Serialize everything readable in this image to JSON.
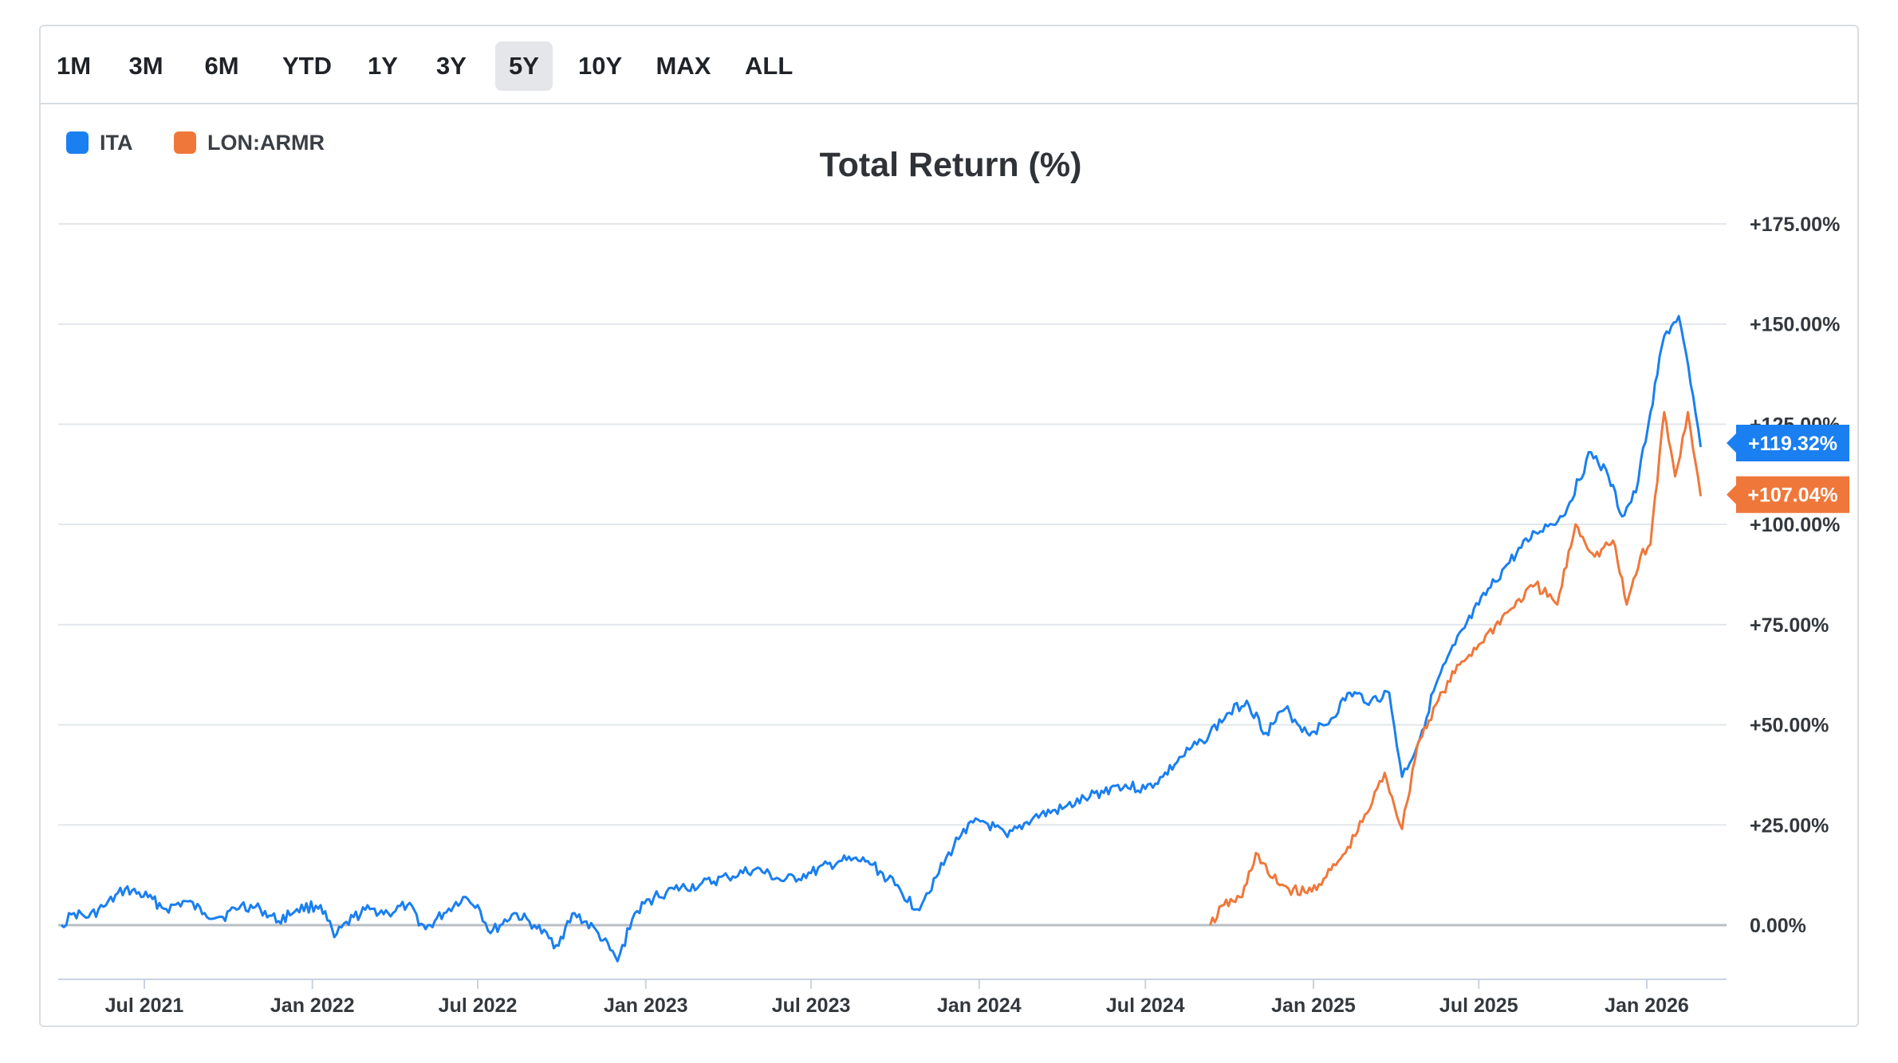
{
  "range_tabs": [
    {
      "label": "1M",
      "active": false
    },
    {
      "label": "3M",
      "active": false
    },
    {
      "label": "6M",
      "active": false
    },
    {
      "label": "YTD",
      "active": false
    },
    {
      "label": "1Y",
      "active": false
    },
    {
      "label": "3Y",
      "active": false
    },
    {
      "label": "5Y",
      "active": true
    },
    {
      "label": "10Y",
      "active": false
    },
    {
      "label": "MAX",
      "active": false
    },
    {
      "label": "ALL",
      "active": false
    }
  ],
  "colors": {
    "ita": "#1a7ff0",
    "armr": "#f0773a",
    "grid": "#e3e6ea",
    "zero_line": "#b9bec5",
    "axis_text": "#33383d"
  },
  "chart_data": {
    "type": "line",
    "title": "Total Return (%)",
    "xlabel": "",
    "ylabel": "",
    "x_ticks": [
      "Jul 2021",
      "Jan 2022",
      "Jul 2022",
      "Jan 2023",
      "Jul 2023",
      "Jan 2024",
      "Jul 2024",
      "Jan 2025",
      "Jul 2025",
      "Jan 2026"
    ],
    "y_ticks": [
      "+175.00%",
      "+150.00%",
      "+125.00%",
      "+100.00%",
      "+75.00%",
      "+50.00%",
      "+25.00%",
      "0.00%"
    ],
    "ylim": [
      -13,
      175
    ],
    "grid": true,
    "legend_position": "top-left",
    "series": [
      {
        "name": "ITA",
        "color_key": "ita",
        "end_label": "+119.32%",
        "points": [
          [
            "2021-04-01",
            0
          ],
          [
            "2021-04-15",
            3
          ],
          [
            "2021-05-01",
            2
          ],
          [
            "2021-05-20",
            5
          ],
          [
            "2021-06-10",
            9
          ],
          [
            "2021-07-05",
            7
          ],
          [
            "2021-07-25",
            4
          ],
          [
            "2021-08-15",
            6
          ],
          [
            "2021-09-05",
            3
          ],
          [
            "2021-09-25",
            2
          ],
          [
            "2021-10-15",
            5
          ],
          [
            "2021-11-05",
            4
          ],
          [
            "2021-11-25",
            1
          ],
          [
            "2021-12-15",
            4
          ],
          [
            "2022-01-10",
            5
          ],
          [
            "2022-01-25",
            -3
          ],
          [
            "2022-02-15",
            2
          ],
          [
            "2022-03-05",
            4
          ],
          [
            "2022-03-25",
            3
          ],
          [
            "2022-04-15",
            5
          ],
          [
            "2022-05-05",
            -1
          ],
          [
            "2022-05-25",
            3
          ],
          [
            "2022-06-15",
            7
          ],
          [
            "2022-07-01",
            5
          ],
          [
            "2022-07-15",
            -2
          ],
          [
            "2022-08-10",
            3
          ],
          [
            "2022-09-01",
            0
          ],
          [
            "2022-09-25",
            -5
          ],
          [
            "2022-10-15",
            3
          ],
          [
            "2022-11-10",
            -2
          ],
          [
            "2022-12-01",
            -9
          ],
          [
            "2022-12-20",
            3
          ],
          [
            "2023-01-10",
            7
          ],
          [
            "2023-02-01",
            9
          ],
          [
            "2023-03-01",
            10
          ],
          [
            "2023-04-01",
            12
          ],
          [
            "2023-05-01",
            14
          ],
          [
            "2023-06-01",
            11
          ],
          [
            "2023-07-01",
            13
          ],
          [
            "2023-08-01",
            16
          ],
          [
            "2023-09-01",
            16
          ],
          [
            "2023-10-01",
            10
          ],
          [
            "2023-10-25",
            4
          ],
          [
            "2023-11-15",
            12
          ],
          [
            "2023-12-15",
            24
          ],
          [
            "2024-01-05",
            26
          ],
          [
            "2024-02-01",
            22
          ],
          [
            "2024-03-01",
            27
          ],
          [
            "2024-04-01",
            29
          ],
          [
            "2024-05-01",
            32
          ],
          [
            "2024-06-01",
            35
          ],
          [
            "2024-07-01",
            34
          ],
          [
            "2024-07-20",
            37
          ],
          [
            "2024-08-10",
            42
          ],
          [
            "2024-09-01",
            46
          ],
          [
            "2024-10-01",
            53
          ],
          [
            "2024-10-20",
            56
          ],
          [
            "2024-11-10",
            48
          ],
          [
            "2024-12-01",
            54
          ],
          [
            "2024-12-25",
            48
          ],
          [
            "2025-01-15",
            50
          ],
          [
            "2025-02-10",
            58
          ],
          [
            "2025-03-05",
            56
          ],
          [
            "2025-03-25",
            58
          ],
          [
            "2025-04-08",
            37
          ],
          [
            "2025-04-25",
            45
          ],
          [
            "2025-05-15",
            60
          ],
          [
            "2025-06-05",
            70
          ],
          [
            "2025-07-01",
            80
          ],
          [
            "2025-08-01",
            90
          ],
          [
            "2025-09-01",
            98
          ],
          [
            "2025-10-01",
            102
          ],
          [
            "2025-11-01",
            118
          ],
          [
            "2025-11-20",
            112
          ],
          [
            "2025-12-05",
            102
          ],
          [
            "2025-12-20",
            108
          ],
          [
            "2026-01-05",
            128
          ],
          [
            "2026-01-20",
            147
          ],
          [
            "2026-02-05",
            152
          ],
          [
            "2026-02-18",
            135
          ],
          [
            "2026-03-01",
            119.32
          ]
        ]
      },
      {
        "name": "LON:ARMR",
        "color_key": "armr",
        "end_label": "+107.04%",
        "points": [
          [
            "2024-09-10",
            0
          ],
          [
            "2024-09-25",
            5
          ],
          [
            "2024-10-15",
            7
          ],
          [
            "2024-10-30",
            18
          ],
          [
            "2024-11-15",
            12
          ],
          [
            "2024-12-05",
            9
          ],
          [
            "2024-12-25",
            8
          ],
          [
            "2025-01-15",
            12
          ],
          [
            "2025-02-05",
            18
          ],
          [
            "2025-03-01",
            28
          ],
          [
            "2025-03-20",
            38
          ],
          [
            "2025-04-08",
            24
          ],
          [
            "2025-04-25",
            45
          ],
          [
            "2025-05-15",
            55
          ],
          [
            "2025-06-10",
            65
          ],
          [
            "2025-07-01",
            70
          ],
          [
            "2025-08-01",
            78
          ],
          [
            "2025-09-01",
            85
          ],
          [
            "2025-09-25",
            80
          ],
          [
            "2025-10-15",
            100
          ],
          [
            "2025-11-05",
            92
          ],
          [
            "2025-11-25",
            96
          ],
          [
            "2025-12-10",
            80
          ],
          [
            "2025-12-25",
            92
          ],
          [
            "2026-01-05",
            95
          ],
          [
            "2026-01-20",
            128
          ],
          [
            "2026-02-01",
            112
          ],
          [
            "2026-02-15",
            128
          ],
          [
            "2026-03-01",
            107.04
          ]
        ]
      }
    ]
  }
}
